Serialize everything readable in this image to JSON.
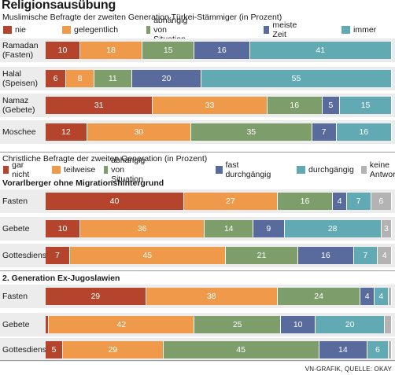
{
  "title": "Religionsausübung",
  "section1": {
    "subtitle": "Muslimische Befragte der zweiten Generation Türkei-Stämmiger (in Prozent)",
    "legend": [
      {
        "label": "nie",
        "color": "#b5442c"
      },
      {
        "label": "gelegentlich",
        "color": "#ef9a4a"
      },
      {
        "label": "abhängig von Situation",
        "color": "#7d9e6a"
      },
      {
        "label": "meiste Zeit",
        "color": "#586b9c"
      },
      {
        "label": "immer",
        "color": "#62aab3"
      }
    ],
    "rows": [
      {
        "label": "Ramadan\n(Fasten)",
        "values": [
          "10",
          "18",
          "15",
          "16",
          "41"
        ]
      },
      {
        "label": "Halal\n(Speisen)",
        "values": [
          "6",
          "8",
          "11",
          "20",
          "55"
        ]
      },
      {
        "label": "Namaz\n(Gebete)",
        "values": [
          "31",
          "33",
          "16",
          "5",
          "15"
        ]
      },
      {
        "label": "Moschee",
        "values": [
          "12",
          "30",
          "35",
          "7",
          "16"
        ]
      }
    ]
  },
  "section2": {
    "subtitle": "Christliche Befragte der zweiten Generation (in Prozent)",
    "legend": [
      {
        "label": "gar nicht",
        "color": "#b5442c"
      },
      {
        "label": "teilweise",
        "color": "#ef9a4a"
      },
      {
        "label": "abhängig von Situation",
        "color": "#7d9e6a"
      },
      {
        "label": "fast durchgängig",
        "color": "#586b9c"
      },
      {
        "label": "durchgängig",
        "color": "#62aab3"
      },
      {
        "label": "keine Antwort",
        "color": "#b3b3b3"
      }
    ],
    "groups": [
      {
        "heading": "Vorarlberger ohne Migrationshintergrund",
        "rows": [
          {
            "label": "Fasten",
            "values": [
              "40",
              "27",
              "16",
              "4",
              "7",
              "6"
            ]
          },
          {
            "label": "Gebete",
            "values": [
              "10",
              "36",
              "14",
              "9",
              "28",
              "3"
            ]
          },
          {
            "label": "Gottesdienst",
            "values": [
              "7",
              "45",
              "21",
              "16",
              "7",
              "4"
            ]
          }
        ]
      },
      {
        "heading": "2. Generation Ex-Jugoslawien",
        "rows": [
          {
            "label": "Fasten",
            "values": [
              "29",
              "38",
              "24",
              "4",
              "4",
              ""
            ]
          },
          {
            "label": "Gebete",
            "values": [
              "",
              "42",
              "25",
              "10",
              "20",
              ""
            ]
          },
          {
            "label": "Gottesdienst",
            "values": [
              "5",
              "29",
              "45",
              "14",
              "6",
              ""
            ]
          }
        ]
      }
    ]
  },
  "chart_data": [
    {
      "type": "bar",
      "title": "Religionsausübung",
      "subtitle": "Muslimische Befragte der zweiten Generation Türkei-Stämmiger (in Prozent)",
      "stacked": true,
      "categories": [
        "Ramadan (Fasten)",
        "Halal (Speisen)",
        "Namaz (Gebete)",
        "Moschee"
      ],
      "series": [
        {
          "name": "nie",
          "values": [
            10,
            6,
            31,
            12
          ]
        },
        {
          "name": "gelegentlich",
          "values": [
            18,
            8,
            33,
            30
          ]
        },
        {
          "name": "abhängig von Situation",
          "values": [
            15,
            11,
            16,
            35
          ]
        },
        {
          "name": "meiste Zeit",
          "values": [
            16,
            20,
            5,
            7
          ]
        },
        {
          "name": "immer",
          "values": [
            41,
            55,
            15,
            16
          ]
        }
      ],
      "legend": "top"
    },
    {
      "type": "bar",
      "subtitle": "Christliche Befragte der zweiten Generation (in Prozent)",
      "stacked": true,
      "categories": [
        "Vorarlberger ohne Migrationshintergrund – Fasten",
        "Vorarlberger ohne Migrationshintergrund – Gebete",
        "Vorarlberger ohne Migrationshintergrund – Gottesdienst",
        "2. Generation Ex-Jugoslawien – Fasten",
        "2. Generation Ex-Jugoslawien – Gebete",
        "2. Generation Ex-Jugoslawien – Gottesdienst"
      ],
      "series": [
        {
          "name": "gar nicht",
          "values": [
            40,
            10,
            7,
            29,
            1,
            5
          ]
        },
        {
          "name": "teilweise",
          "values": [
            27,
            36,
            45,
            38,
            42,
            29
          ]
        },
        {
          "name": "abhängig von Situation",
          "values": [
            16,
            14,
            21,
            24,
            25,
            45
          ]
        },
        {
          "name": "fast durchgängig",
          "values": [
            4,
            9,
            16,
            4,
            10,
            14
          ]
        },
        {
          "name": "durchgängig",
          "values": [
            7,
            28,
            7,
            4,
            20,
            6
          ]
        },
        {
          "name": "keine Antwort",
          "values": [
            6,
            3,
            4,
            1,
            2,
            1
          ]
        }
      ],
      "legend": "top"
    }
  ],
  "footer": "VN-GRAFIK, QUELLE: OKAY"
}
